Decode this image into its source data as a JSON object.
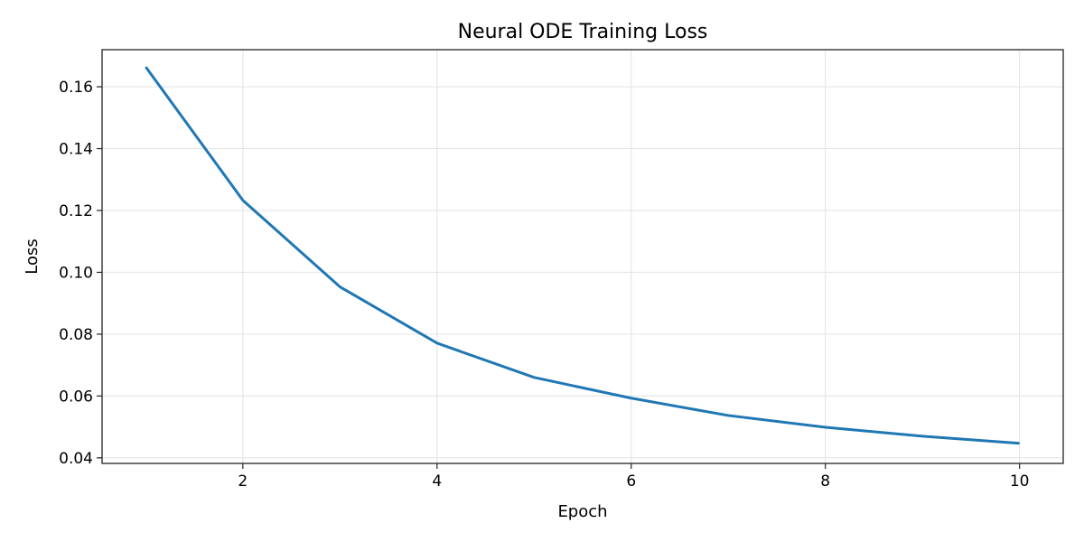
{
  "chart_data": {
    "type": "line",
    "title": "Neural ODE Training Loss",
    "xlabel": "Epoch",
    "ylabel": "Loss",
    "x": [
      1,
      2,
      3,
      4,
      5,
      6,
      7,
      8,
      9,
      10
    ],
    "series": [
      {
        "values": [
          0.1664,
          0.1233,
          0.0953,
          0.0771,
          0.066,
          0.0593,
          0.0537,
          0.0499,
          0.047,
          0.0447
        ],
        "color": "#1f77b4"
      }
    ],
    "xlim": [
      0.55,
      10.45
    ],
    "ylim": [
      0.0382,
      0.172
    ],
    "xticks": [
      2,
      4,
      6,
      8,
      10
    ],
    "xtick_labels": [
      "2",
      "4",
      "6",
      "8",
      "10"
    ],
    "yticks": [
      0.04,
      0.06,
      0.08,
      0.1,
      0.12,
      0.14,
      0.16
    ],
    "ytick_labels": [
      "0.04",
      "0.06",
      "0.08",
      "0.10",
      "0.12",
      "0.14",
      "0.16"
    ],
    "grid": true,
    "legend": "none"
  }
}
